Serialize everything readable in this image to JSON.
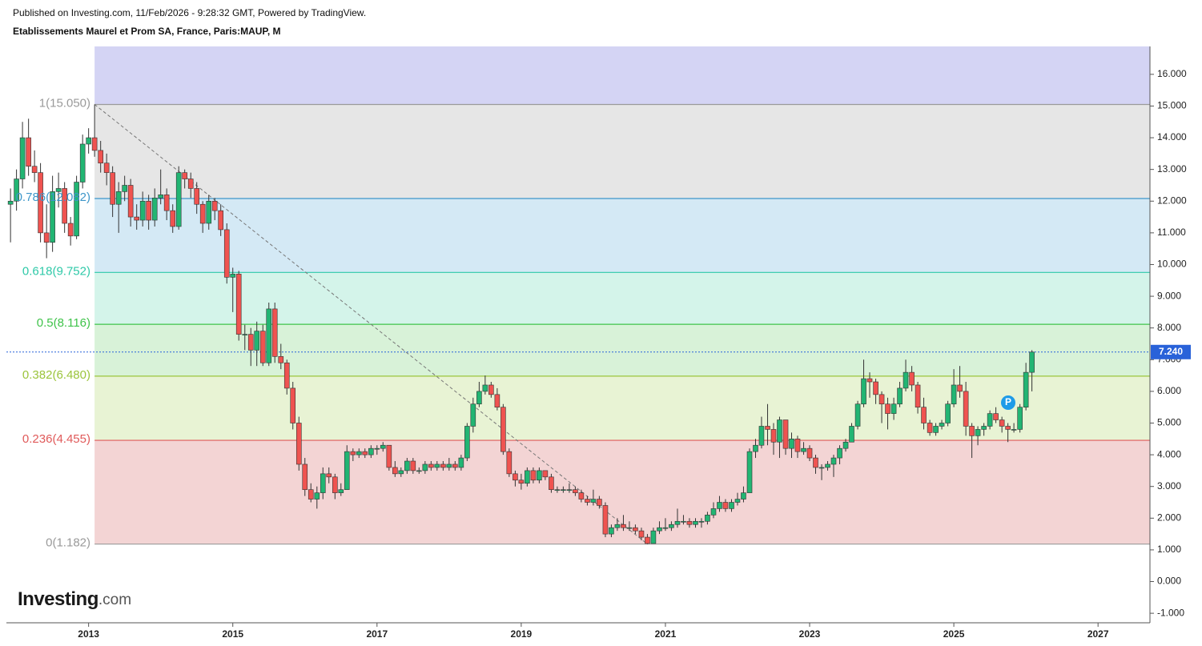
{
  "header": {
    "published": "Published on Investing.com, 11/Feb/2026 - 9:28:32 GMT, Powered by TradingView.",
    "symbol": "Etablissements Maurel et Prom SA, France, Paris:MAUP, M"
  },
  "logo": {
    "main": "Investing",
    "suffix": ".com"
  },
  "chart_data": {
    "type": "candlestick",
    "up_color": "#22b573",
    "down_color": "#ef5350",
    "xlim": [
      2011.86,
      2027.72
    ],
    "xticks": [
      2013,
      2015,
      2017,
      2019,
      2021,
      2023,
      2025,
      2027
    ],
    "ylim": [
      -1.3,
      16.88
    ],
    "yticks": [
      {
        "value": -1,
        "label": "-1.000"
      },
      {
        "value": 0,
        "label": "0.000"
      },
      {
        "value": 1,
        "label": "1.000"
      },
      {
        "value": 2,
        "label": "2.000"
      },
      {
        "value": 3,
        "label": "3.000"
      },
      {
        "value": 4,
        "label": "4.000"
      },
      {
        "value": 5,
        "label": "5.000"
      },
      {
        "value": 6,
        "label": "6.000"
      },
      {
        "value": 7,
        "label": "7.000"
      },
      {
        "value": 8,
        "label": "8.000"
      },
      {
        "value": 9,
        "label": "9.000"
      },
      {
        "value": 10,
        "label": "10.000"
      },
      {
        "value": 11,
        "label": "11.000"
      },
      {
        "value": 12,
        "label": "12.000"
      },
      {
        "value": 13,
        "label": "13.000"
      },
      {
        "value": 14,
        "label": "14.000"
      },
      {
        "value": 15,
        "label": "15.000"
      },
      {
        "value": 16,
        "label": "16.000"
      }
    ],
    "last_price": {
      "value": 7.24,
      "label": "7.240",
      "color": "#2962d9"
    },
    "marker": "P",
    "fib_levels": [
      {
        "value": 15.05,
        "label": "1(15.050)",
        "color": "#9a9a9a",
        "fill": "#e6e6e6"
      },
      {
        "value": 12.082,
        "label": "0.786(12.082)",
        "color": "#3d96c9",
        "fill": "#d4e9f5"
      },
      {
        "value": 9.752,
        "label": "0.618(9.752)",
        "color": "#2ec9a8",
        "fill": "#d4f4ea"
      },
      {
        "value": 8.116,
        "label": "0.5(8.116)",
        "color": "#3fc34a",
        "fill": "#d8f2d8"
      },
      {
        "value": 6.48,
        "label": "0.382(6.480)",
        "color": "#9bc43b",
        "fill": "#e8f3d4"
      },
      {
        "value": 4.455,
        "label": "0.236(4.455)",
        "color": "#e05a5a",
        "fill": "#f3d4d4"
      },
      {
        "value": 1.182,
        "label": "0(1.182)",
        "color": "#9a9a9a",
        "fill": null
      }
    ],
    "fib_top_fill": "#d4d4f4",
    "fib_start": 2013.083,
    "trend_line": {
      "x": [
        2013.083,
        2020.75
      ],
      "y": [
        15.05,
        1.182
      ]
    },
    "x": [
      2011.917,
      2012,
      2012.083,
      2012.167,
      2012.25,
      2012.333,
      2012.417,
      2012.5,
      2012.583,
      2012.667,
      2012.75,
      2012.833,
      2012.917,
      2013,
      2013.083,
      2013.167,
      2013.25,
      2013.333,
      2013.417,
      2013.5,
      2013.583,
      2013.667,
      2013.75,
      2013.833,
      2013.917,
      2014,
      2014.083,
      2014.167,
      2014.25,
      2014.333,
      2014.417,
      2014.5,
      2014.583,
      2014.667,
      2014.75,
      2014.833,
      2014.917,
      2015,
      2015.083,
      2015.167,
      2015.25,
      2015.333,
      2015.417,
      2015.5,
      2015.583,
      2015.667,
      2015.75,
      2015.833,
      2015.917,
      2016,
      2016.083,
      2016.167,
      2016.25,
      2016.333,
      2016.417,
      2016.5,
      2016.583,
      2016.667,
      2016.75,
      2016.833,
      2016.917,
      2017,
      2017.083,
      2017.167,
      2017.25,
      2017.333,
      2017.417,
      2017.5,
      2017.583,
      2017.667,
      2017.75,
      2017.833,
      2017.917,
      2018,
      2018.083,
      2018.167,
      2018.25,
      2018.333,
      2018.417,
      2018.5,
      2018.583,
      2018.667,
      2018.75,
      2018.833,
      2018.917,
      2019,
      2019.083,
      2019.167,
      2019.25,
      2019.333,
      2019.417,
      2019.5,
      2019.583,
      2019.667,
      2019.75,
      2019.833,
      2019.917,
      2020,
      2020.083,
      2020.167,
      2020.25,
      2020.333,
      2020.417,
      2020.5,
      2020.583,
      2020.667,
      2020.75,
      2020.833,
      2020.917,
      2021,
      2021.083,
      2021.167,
      2021.25,
      2021.333,
      2021.417,
      2021.5,
      2021.583,
      2021.667,
      2021.75,
      2021.833,
      2021.917,
      2022,
      2022.083,
      2022.167,
      2022.25,
      2022.333,
      2022.417,
      2022.5,
      2022.583,
      2022.667,
      2022.75,
      2022.833,
      2022.917,
      2023,
      2023.083,
      2023.167,
      2023.25,
      2023.333,
      2023.417,
      2023.5,
      2023.583,
      2023.667,
      2023.75,
      2023.833,
      2023.917,
      2024,
      2024.083,
      2024.167,
      2024.25,
      2024.333,
      2024.417,
      2024.5,
      2024.583,
      2024.667,
      2024.75,
      2024.833,
      2024.917,
      2025,
      2025.083,
      2025.167,
      2025.25,
      2025.333,
      2025.417,
      2025.5,
      2025.583,
      2025.667,
      2025.75,
      2025.833,
      2025.917,
      2026,
      2026.083
    ],
    "ohlc": [
      [
        11.9,
        12.4,
        10.7,
        12.0
      ],
      [
        12.0,
        13.0,
        11.7,
        12.7
      ],
      [
        12.7,
        14.5,
        12.4,
        14.0
      ],
      [
        14.0,
        14.6,
        12.8,
        13.1
      ],
      [
        13.1,
        13.6,
        12.6,
        12.9
      ],
      [
        12.9,
        13.2,
        10.7,
        11.0
      ],
      [
        11.0,
        11.9,
        10.2,
        10.7
      ],
      [
        10.7,
        12.8,
        10.4,
        12.3
      ],
      [
        12.3,
        12.9,
        11.8,
        12.4
      ],
      [
        12.4,
        12.6,
        11.0,
        11.3
      ],
      [
        11.3,
        11.5,
        10.6,
        10.9
      ],
      [
        10.9,
        12.8,
        10.8,
        12.6
      ],
      [
        12.6,
        14.1,
        12.4,
        13.8
      ],
      [
        13.8,
        14.3,
        13.5,
        14.0
      ],
      [
        14.0,
        15.05,
        13.4,
        13.6
      ],
      [
        13.6,
        13.9,
        12.9,
        13.2
      ],
      [
        13.2,
        13.5,
        12.5,
        12.9
      ],
      [
        12.9,
        13.1,
        11.5,
        11.9
      ],
      [
        11.9,
        12.6,
        11.0,
        12.3
      ],
      [
        12.3,
        12.8,
        12.0,
        12.5
      ],
      [
        12.5,
        12.7,
        11.2,
        11.5
      ],
      [
        11.5,
        11.9,
        11.1,
        11.4
      ],
      [
        11.4,
        12.3,
        11.2,
        12.0
      ],
      [
        12.0,
        12.2,
        11.1,
        11.4
      ],
      [
        11.4,
        12.4,
        11.2,
        12.1
      ],
      [
        12.1,
        13.0,
        11.9,
        12.2
      ],
      [
        12.2,
        12.4,
        11.4,
        11.7
      ],
      [
        11.7,
        11.9,
        11.0,
        11.2
      ],
      [
        11.2,
        13.1,
        11.1,
        12.9
      ],
      [
        12.9,
        13.0,
        12.4,
        12.7
      ],
      [
        12.7,
        12.9,
        12.1,
        12.4
      ],
      [
        12.4,
        12.6,
        11.6,
        11.9
      ],
      [
        11.9,
        12.0,
        11.0,
        11.3
      ],
      [
        11.3,
        12.2,
        11.1,
        12.0
      ],
      [
        12.0,
        12.1,
        11.4,
        11.7
      ],
      [
        11.7,
        11.9,
        10.9,
        11.1
      ],
      [
        11.1,
        11.3,
        9.4,
        9.6
      ],
      [
        9.6,
        9.9,
        8.5,
        9.7
      ],
      [
        9.7,
        9.8,
        7.6,
        7.8
      ],
      [
        7.8,
        8.1,
        7.3,
        7.8
      ],
      [
        7.8,
        8.0,
        6.8,
        7.3
      ],
      [
        7.3,
        8.2,
        6.8,
        7.9
      ],
      [
        7.9,
        8.1,
        6.8,
        6.9
      ],
      [
        6.9,
        8.8,
        6.8,
        8.6
      ],
      [
        8.6,
        8.8,
        6.9,
        7.1
      ],
      [
        7.1,
        7.5,
        6.7,
        6.9
      ],
      [
        6.9,
        7.0,
        5.9,
        6.1
      ],
      [
        6.1,
        6.3,
        4.8,
        5.0
      ],
      [
        5.0,
        5.2,
        3.5,
        3.7
      ],
      [
        3.7,
        3.9,
        2.7,
        2.9
      ],
      [
        2.9,
        3.1,
        2.5,
        2.6
      ],
      [
        2.6,
        3.0,
        2.3,
        2.8
      ],
      [
        2.8,
        3.6,
        2.6,
        3.4
      ],
      [
        3.4,
        3.6,
        3.1,
        3.3
      ],
      [
        3.3,
        3.4,
        2.6,
        2.8
      ],
      [
        2.8,
        3.1,
        2.7,
        2.9
      ],
      [
        2.9,
        4.3,
        2.9,
        4.1
      ],
      [
        4.1,
        4.2,
        3.8,
        4.0
      ],
      [
        4.0,
        4.2,
        3.9,
        4.1
      ],
      [
        4.1,
        4.2,
        3.9,
        4.0
      ],
      [
        4.0,
        4.3,
        3.9,
        4.2
      ],
      [
        4.2,
        4.3,
        4.0,
        4.2
      ],
      [
        4.2,
        4.4,
        4.1,
        4.3
      ],
      [
        4.3,
        4.3,
        3.5,
        3.6
      ],
      [
        3.6,
        3.8,
        3.3,
        3.4
      ],
      [
        3.4,
        3.6,
        3.3,
        3.5
      ],
      [
        3.5,
        3.9,
        3.4,
        3.8
      ],
      [
        3.8,
        3.9,
        3.4,
        3.5
      ],
      [
        3.5,
        3.6,
        3.4,
        3.5
      ],
      [
        3.5,
        3.8,
        3.4,
        3.7
      ],
      [
        3.7,
        3.8,
        3.5,
        3.6
      ],
      [
        3.6,
        3.8,
        3.5,
        3.7
      ],
      [
        3.7,
        3.8,
        3.5,
        3.6
      ],
      [
        3.6,
        3.9,
        3.5,
        3.7
      ],
      [
        3.7,
        3.8,
        3.5,
        3.6
      ],
      [
        3.6,
        4.0,
        3.5,
        3.9
      ],
      [
        3.9,
        5.0,
        3.8,
        4.9
      ],
      [
        4.9,
        5.8,
        4.7,
        5.6
      ],
      [
        5.6,
        6.3,
        5.5,
        6.0
      ],
      [
        6.0,
        6.5,
        5.9,
        6.2
      ],
      [
        6.2,
        6.3,
        5.8,
        5.9
      ],
      [
        5.9,
        6.1,
        5.4,
        5.5
      ],
      [
        5.5,
        5.6,
        4.0,
        4.1
      ],
      [
        4.1,
        4.2,
        3.3,
        3.4
      ],
      [
        3.4,
        3.5,
        3.0,
        3.2
      ],
      [
        3.2,
        3.4,
        2.9,
        3.1
      ],
      [
        3.1,
        3.6,
        3.0,
        3.5
      ],
      [
        3.5,
        3.6,
        3.1,
        3.2
      ],
      [
        3.2,
        3.6,
        3.1,
        3.5
      ],
      [
        3.5,
        3.5,
        3.2,
        3.3
      ],
      [
        3.3,
        3.4,
        2.8,
        2.9
      ],
      [
        2.9,
        3.0,
        2.8,
        2.9
      ],
      [
        2.9,
        3.0,
        2.8,
        2.9
      ],
      [
        2.9,
        3.1,
        2.8,
        2.9
      ],
      [
        2.9,
        3.0,
        2.7,
        2.8
      ],
      [
        2.8,
        2.9,
        2.5,
        2.6
      ],
      [
        2.6,
        2.7,
        2.4,
        2.5
      ],
      [
        2.5,
        2.9,
        2.4,
        2.6
      ],
      [
        2.6,
        2.7,
        2.3,
        2.4
      ],
      [
        2.4,
        2.5,
        1.4,
        1.5
      ],
      [
        1.5,
        1.8,
        1.4,
        1.7
      ],
      [
        1.7,
        2.0,
        1.6,
        1.8
      ],
      [
        1.8,
        2.1,
        1.6,
        1.7
      ],
      [
        1.7,
        1.9,
        1.6,
        1.7
      ],
      [
        1.7,
        1.8,
        1.5,
        1.6
      ],
      [
        1.6,
        1.7,
        1.3,
        1.4
      ],
      [
        1.4,
        1.5,
        1.182,
        1.2
      ],
      [
        1.2,
        1.7,
        1.2,
        1.6
      ],
      [
        1.6,
        1.9,
        1.5,
        1.7
      ],
      [
        1.7,
        2.0,
        1.6,
        1.7
      ],
      [
        1.7,
        1.9,
        1.6,
        1.8
      ],
      [
        1.8,
        2.3,
        1.7,
        1.9
      ],
      [
        1.9,
        2.1,
        1.8,
        1.9
      ],
      [
        1.9,
        2.0,
        1.7,
        1.8
      ],
      [
        1.8,
        2.0,
        1.7,
        1.9
      ],
      [
        1.9,
        2.0,
        1.7,
        1.9
      ],
      [
        1.9,
        2.2,
        1.8,
        2.1
      ],
      [
        2.1,
        2.5,
        2.0,
        2.3
      ],
      [
        2.3,
        2.7,
        2.2,
        2.5
      ],
      [
        2.5,
        2.6,
        2.2,
        2.3
      ],
      [
        2.3,
        2.6,
        2.2,
        2.5
      ],
      [
        2.5,
        2.8,
        2.4,
        2.6
      ],
      [
        2.6,
        3.0,
        2.5,
        2.8
      ],
      [
        2.8,
        4.2,
        2.8,
        4.1
      ],
      [
        4.1,
        4.5,
        3.9,
        4.3
      ],
      [
        4.3,
        5.2,
        4.2,
        4.9
      ],
      [
        4.9,
        5.6,
        4.3,
        4.8
      ],
      [
        4.8,
        5.0,
        4.0,
        4.4
      ],
      [
        4.4,
        5.2,
        3.9,
        5.1
      ],
      [
        5.1,
        5.1,
        4.0,
        4.2
      ],
      [
        4.2,
        4.7,
        3.9,
        4.5
      ],
      [
        4.5,
        4.6,
        3.9,
        4.1
      ],
      [
        4.1,
        4.4,
        4.0,
        4.2
      ],
      [
        4.2,
        4.3,
        3.8,
        3.9
      ],
      [
        3.9,
        4.0,
        3.4,
        3.6
      ],
      [
        3.6,
        3.7,
        3.2,
        3.6
      ],
      [
        3.6,
        3.8,
        3.5,
        3.7
      ],
      [
        3.7,
        4.0,
        3.3,
        3.9
      ],
      [
        3.9,
        4.3,
        3.7,
        4.2
      ],
      [
        4.2,
        4.5,
        4.1,
        4.4
      ],
      [
        4.4,
        5.0,
        4.4,
        4.9
      ],
      [
        4.9,
        5.7,
        4.8,
        5.6
      ],
      [
        5.6,
        7.0,
        5.5,
        6.4
      ],
      [
        6.4,
        6.6,
        5.8,
        6.3
      ],
      [
        6.3,
        6.4,
        5.6,
        5.9
      ],
      [
        5.9,
        6.0,
        5.0,
        5.6
      ],
      [
        5.6,
        5.8,
        4.8,
        5.3
      ],
      [
        5.3,
        5.8,
        5.1,
        5.6
      ],
      [
        5.6,
        6.3,
        5.5,
        6.1
      ],
      [
        6.1,
        7.0,
        6.0,
        6.6
      ],
      [
        6.6,
        6.8,
        6.0,
        6.2
      ],
      [
        6.2,
        6.3,
        5.3,
        5.5
      ],
      [
        5.5,
        5.8,
        4.8,
        5.0
      ],
      [
        5.0,
        5.1,
        4.6,
        4.7
      ],
      [
        4.7,
        5.0,
        4.6,
        4.9
      ],
      [
        4.9,
        5.1,
        4.8,
        5.0
      ],
      [
        5.0,
        5.7,
        4.9,
        5.6
      ],
      [
        5.6,
        6.7,
        5.5,
        6.2
      ],
      [
        6.2,
        6.8,
        5.8,
        6.0
      ],
      [
        6.0,
        6.3,
        4.6,
        4.9
      ],
      [
        4.9,
        5.0,
        3.9,
        4.6
      ],
      [
        4.6,
        4.9,
        4.3,
        4.8
      ],
      [
        4.8,
        5.0,
        4.6,
        4.9
      ],
      [
        4.9,
        5.4,
        4.8,
        5.3
      ],
      [
        5.3,
        5.5,
        5.0,
        5.1
      ],
      [
        5.1,
        5.2,
        4.7,
        4.9
      ],
      [
        4.9,
        5.0,
        4.4,
        4.8
      ],
      [
        4.8,
        5.0,
        4.7,
        4.8
      ],
      [
        4.8,
        5.6,
        4.7,
        5.5
      ],
      [
        5.5,
        6.9,
        5.4,
        6.6
      ],
      [
        6.6,
        7.3,
        6.0,
        7.24
      ]
    ]
  }
}
